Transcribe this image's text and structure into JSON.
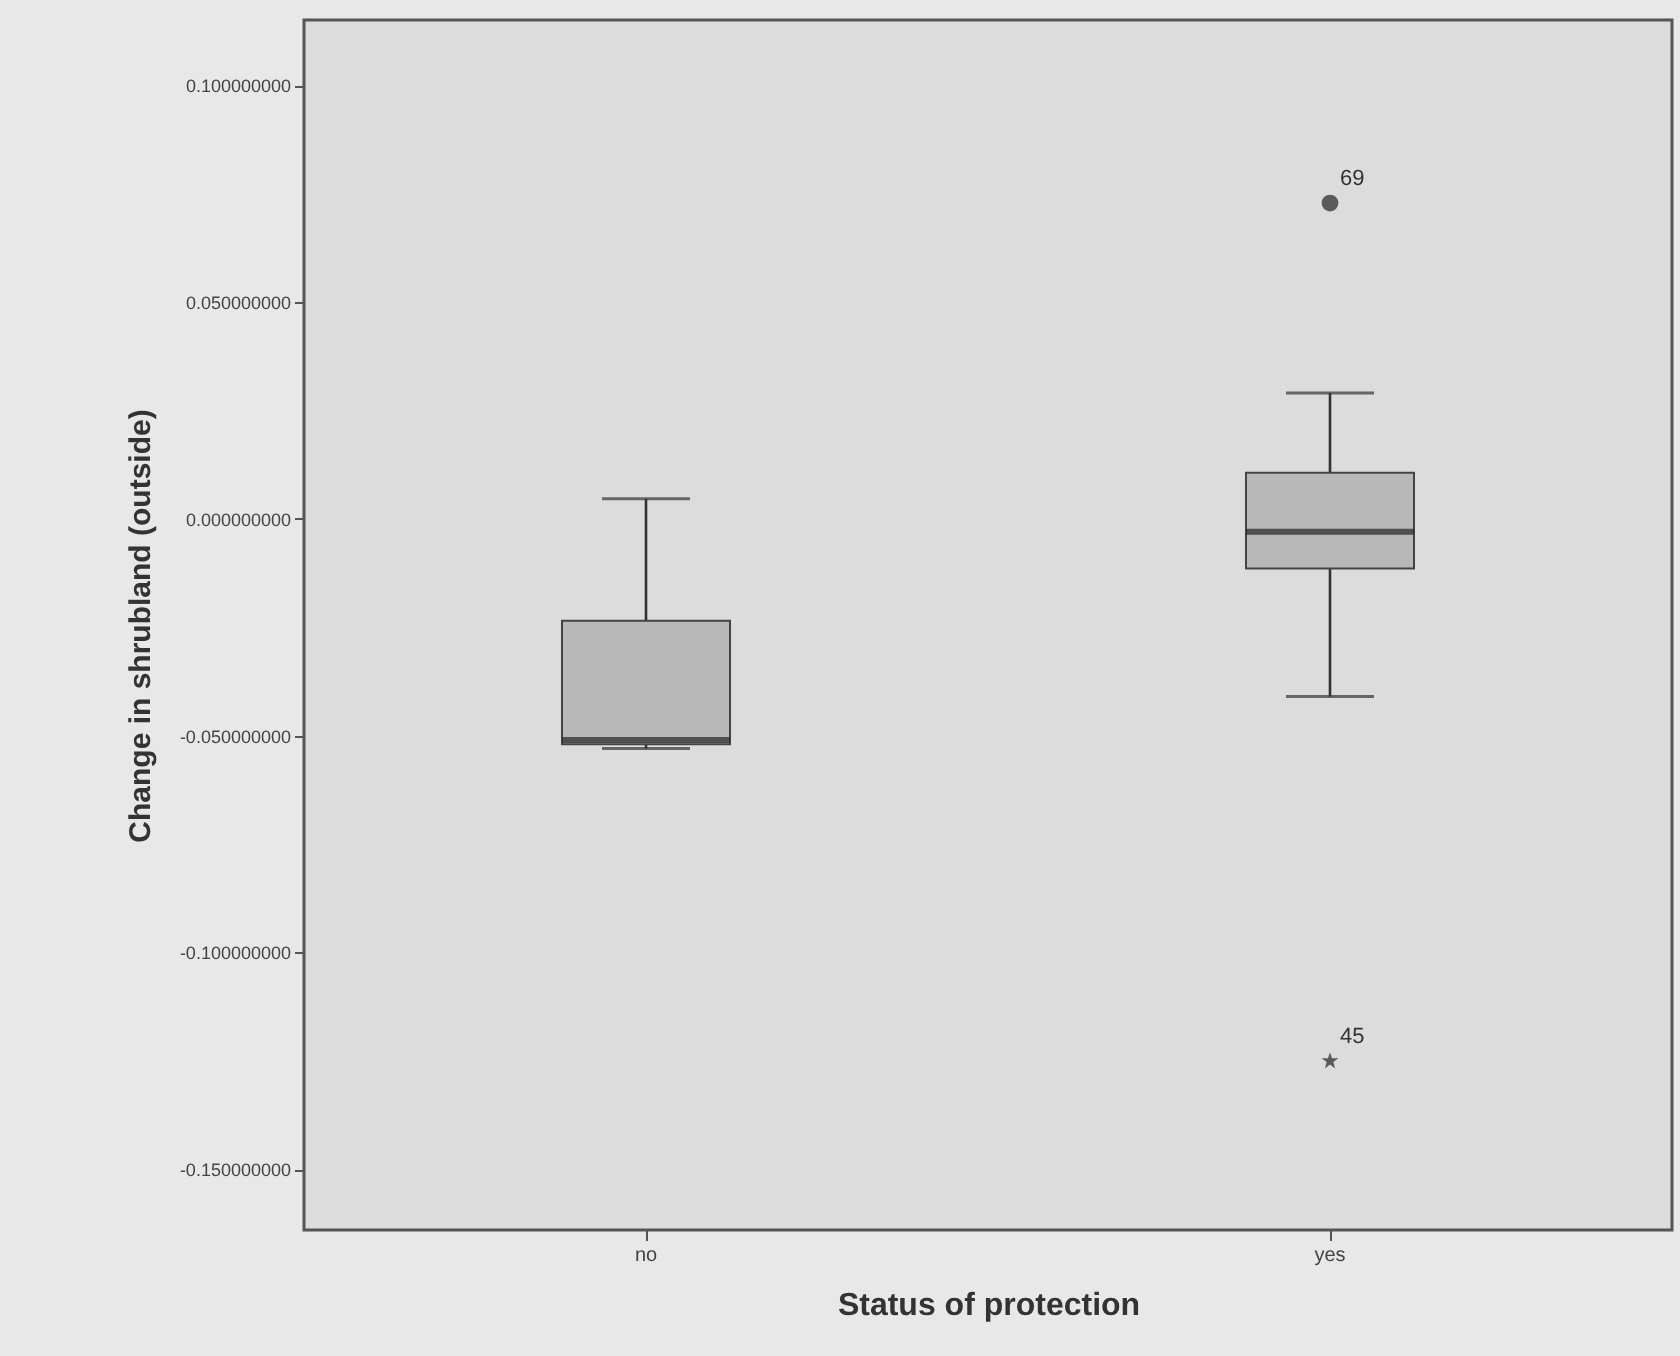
{
  "chart_data": {
    "type": "box",
    "xlabel": "Status of protection",
    "ylabel": "Change in shrubland (outside)",
    "categories": [
      "no",
      "yes"
    ],
    "color": "#b8b8b8",
    "boxes": [
      {
        "low": -0.053,
        "q1": -0.052,
        "median": -0.051,
        "q3": -0.0235,
        "high": 0.0046
      },
      {
        "low": -0.041,
        "q1": -0.0115,
        "median": -0.003,
        "q3": 0.0106,
        "high": 0.029,
        "outliers": [
          0.0728,
          -0.125
        ]
      }
    ],
    "ylim": [
      -0.164,
      0.115
    ],
    "yticks": [
      {
        "value": 0.1,
        "label": "0.100000000"
      },
      {
        "value": 0.05,
        "label": "0.050000000"
      },
      {
        "value": 0,
        "label": "0.000000000"
      },
      {
        "value": -0.05,
        "label": "-0.050000000"
      },
      {
        "value": -0.1,
        "label": "-0.100000000"
      },
      {
        "value": -0.15,
        "label": "-0.150000000"
      }
    ],
    "grid": false,
    "annotations": [
      "69",
      "45"
    ]
  }
}
